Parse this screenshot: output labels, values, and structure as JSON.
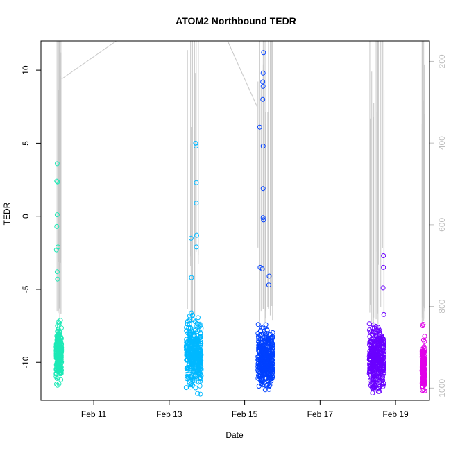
{
  "chart_data": {
    "type": "scatter",
    "title": "ATOM2 Northbound TEDR",
    "xlabel": "Date",
    "ylabel": "TEDR",
    "x_axis": {
      "min": 9.6,
      "max": 19.9,
      "ticks": [
        {
          "value": 11,
          "label": "Feb 11"
        },
        {
          "value": 13,
          "label": "Feb 13"
        },
        {
          "value": 15,
          "label": "Feb 15"
        },
        {
          "value": 17,
          "label": "Feb 17"
        },
        {
          "value": 19,
          "label": "Feb 19"
        }
      ]
    },
    "y_axis": {
      "min": -12.6,
      "max": 12.0,
      "ticks": [
        {
          "value": 10,
          "label": "10"
        },
        {
          "value": 5,
          "label": "5"
        },
        {
          "value": 0,
          "label": "0"
        },
        {
          "value": -5,
          "label": "-5"
        },
        {
          "value": -10,
          "label": "-10"
        }
      ]
    },
    "y2_axis": {
      "note": "secondary axis (pressure, reversed)",
      "min": 1030,
      "max": 150,
      "ticks": [
        {
          "value": 200,
          "label": "200"
        },
        {
          "value": 400,
          "label": "400"
        },
        {
          "value": 600,
          "label": "600"
        },
        {
          "value": 800,
          "label": "800"
        },
        {
          "value": 1000,
          "label": "1000"
        }
      ]
    },
    "series": [
      {
        "color": "#1de9b6",
        "x_range": [
          10.0,
          10.15
        ],
        "dense_y_range": [
          -11.7,
          -5.9
        ],
        "outliers": [
          {
            "x": 10.03,
            "y": 3.6
          },
          {
            "x": 10.02,
            "y": 2.4
          },
          {
            "x": 10.04,
            "y": 2.35
          },
          {
            "x": 10.03,
            "y": 0.1
          },
          {
            "x": 10.02,
            "y": -0.7
          },
          {
            "x": 10.05,
            "y": -2.1
          },
          {
            "x": 10.01,
            "y": -2.3
          },
          {
            "x": 10.03,
            "y": -3.8
          },
          {
            "x": 10.04,
            "y": -4.3
          }
        ]
      },
      {
        "color": "#00b8ff",
        "x_range": [
          13.45,
          13.85
        ],
        "dense_y_range": [
          -12.2,
          -5.5
        ],
        "outliers": [
          {
            "x": 13.7,
            "y": 5.0
          },
          {
            "x": 13.71,
            "y": 4.8
          },
          {
            "x": 13.72,
            "y": 2.3
          },
          {
            "x": 13.72,
            "y": 0.9
          },
          {
            "x": 13.73,
            "y": -1.3
          },
          {
            "x": 13.58,
            "y": -1.5
          },
          {
            "x": 13.72,
            "y": -2.1
          },
          {
            "x": 13.59,
            "y": -4.2
          }
        ]
      },
      {
        "color": "#0040ff",
        "x_range": [
          15.35,
          15.75
        ],
        "dense_y_range": [
          -12.0,
          -6.2
        ],
        "outliers": [
          {
            "x": 15.5,
            "y": 11.2
          },
          {
            "x": 15.49,
            "y": 9.8
          },
          {
            "x": 15.48,
            "y": 9.2
          },
          {
            "x": 15.49,
            "y": 8.9
          },
          {
            "x": 15.48,
            "y": 8.0
          },
          {
            "x": 15.4,
            "y": 6.1
          },
          {
            "x": 15.49,
            "y": 4.8
          },
          {
            "x": 15.49,
            "y": 1.9
          },
          {
            "x": 15.49,
            "y": -0.1
          },
          {
            "x": 15.5,
            "y": -0.25
          },
          {
            "x": 15.41,
            "y": -3.5
          },
          {
            "x": 15.47,
            "y": -3.6
          },
          {
            "x": 15.65,
            "y": -4.1
          },
          {
            "x": 15.64,
            "y": -4.7
          }
        ]
      },
      {
        "color": "#6a00ff",
        "x_range": [
          18.3,
          18.7
        ],
        "dense_y_range": [
          -12.2,
          -5.9
        ],
        "outliers": [
          {
            "x": 18.68,
            "y": -2.7
          },
          {
            "x": 18.68,
            "y": -3.5
          },
          {
            "x": 18.67,
            "y": -4.9
          }
        ]
      },
      {
        "color": "#e000e8",
        "x_range": [
          19.7,
          19.78
        ],
        "dense_y_range": [
          -12.0,
          -7.5
        ],
        "outliers": [
          {
            "x": 19.73,
            "y": -7.4
          },
          {
            "x": 19.72,
            "y": -7.5
          }
        ]
      }
    ],
    "grid": false,
    "legend": "none"
  }
}
